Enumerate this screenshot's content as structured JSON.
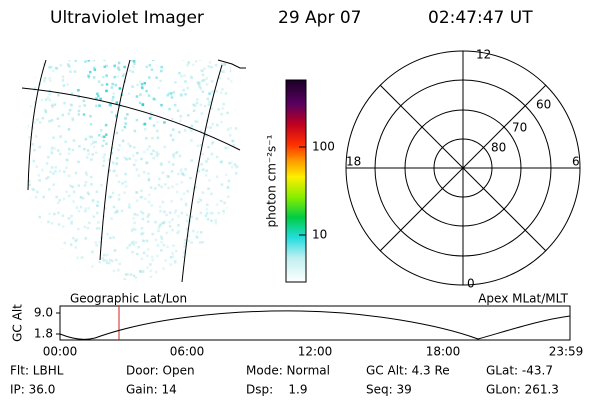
{
  "header": {
    "title": "Ultraviolet Imager",
    "date": "29 Apr 07",
    "time": "02:47:47 UT"
  },
  "colorbar": {
    "label": "photon cm⁻²s⁻¹",
    "ticks": [
      "100",
      "10"
    ]
  },
  "polar": {
    "labels": [
      "12",
      "18",
      "6",
      "0",
      "60",
      "70",
      "80"
    ]
  },
  "altitude_plot": {
    "left_title": "Geographic Lat/Lon",
    "right_title": "Apex MLat/MLT",
    "y_label": "GC Alt",
    "y_ticks": [
      "9.0",
      "1.8"
    ],
    "x_ticks": [
      "00:00",
      "06:00",
      "12:00",
      "18:00",
      "23:59"
    ]
  },
  "info": {
    "rows": [
      [
        "Flt: LBHL",
        "Door: Open",
        "Mode: Normal",
        "GC Alt: 4.3 Re",
        "GLat: -43.7"
      ],
      [
        "IP: 36.0",
        "Gain: 14",
        "Dsp:    1.9",
        "Seq: 39",
        "GLon: 261.3"
      ]
    ]
  }
}
